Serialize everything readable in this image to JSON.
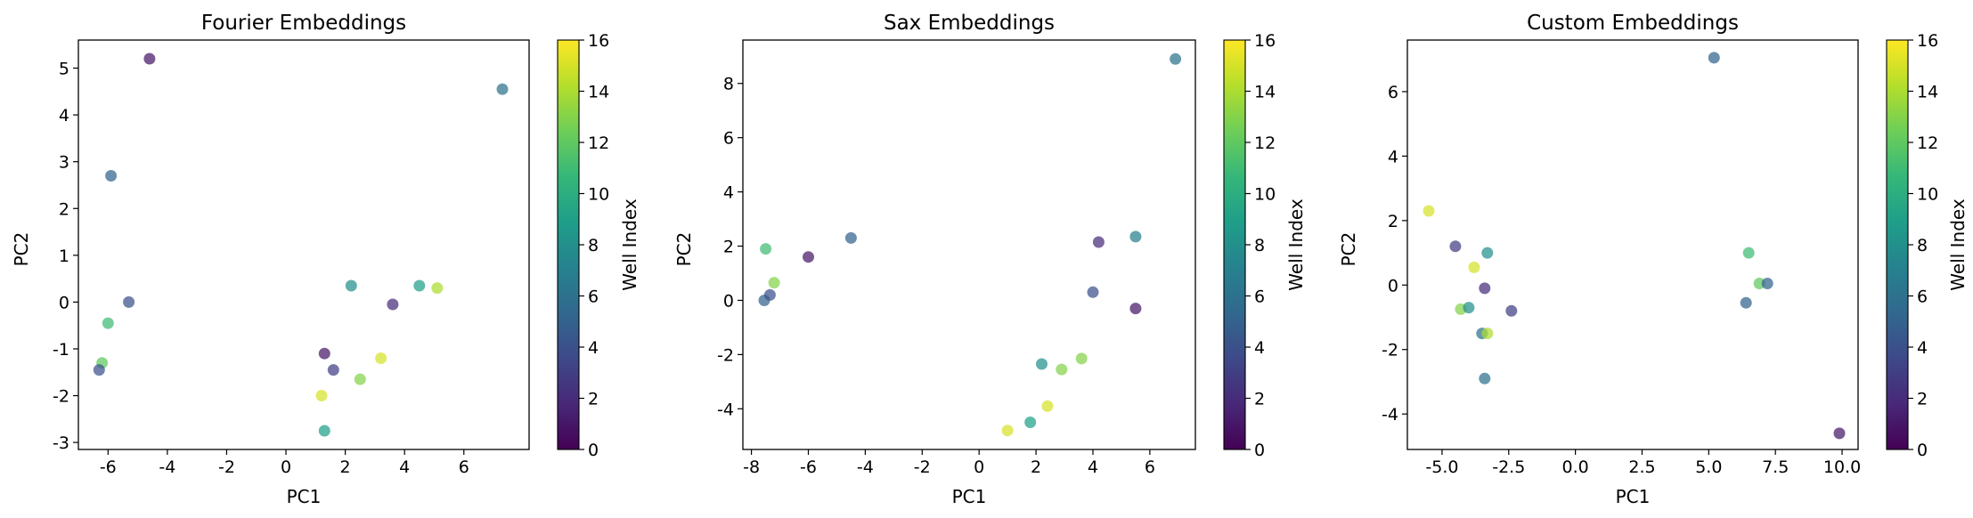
{
  "colors": {
    "colormap": [
      "#440154",
      "#482878",
      "#3e4989",
      "#31688e",
      "#26828e",
      "#1f9e89",
      "#35b779",
      "#6ece58",
      "#b5de2b",
      "#fde725"
    ],
    "axis": "#000000"
  },
  "colorbar_label": "Well Index",
  "chart_data": [
    {
      "type": "scatter",
      "title": "Fourier Embeddings",
      "xlabel": "PC1",
      "ylabel": "PC2",
      "xlim": [
        -7.0,
        8.2
      ],
      "ylim": [
        -3.15,
        5.6
      ],
      "xticks": [
        -6,
        -4,
        -2,
        0,
        2,
        4,
        6
      ],
      "yticks": [
        -3,
        -2,
        -1,
        0,
        1,
        2,
        3,
        4,
        5
      ],
      "colorbar": {
        "label": "Well Index",
        "range": [
          0,
          16
        ],
        "ticks": [
          0,
          2,
          4,
          6,
          8,
          10,
          12,
          14,
          16
        ]
      },
      "grid": false,
      "points": [
        {
          "x": -4.6,
          "y": 5.2,
          "c": 1
        },
        {
          "x": 7.3,
          "y": 4.55,
          "c": 6
        },
        {
          "x": -5.9,
          "y": 2.7,
          "c": 5
        },
        {
          "x": -5.3,
          "y": 0.0,
          "c": 4
        },
        {
          "x": -6.0,
          "y": -0.45,
          "c": 11
        },
        {
          "x": -6.2,
          "y": -1.3,
          "c": 12
        },
        {
          "x": -6.3,
          "y": -1.45,
          "c": 4
        },
        {
          "x": 2.2,
          "y": 0.35,
          "c": 8
        },
        {
          "x": 4.5,
          "y": 0.35,
          "c": 9
        },
        {
          "x": 5.1,
          "y": 0.3,
          "c": 14
        },
        {
          "x": 3.6,
          "y": -0.05,
          "c": 2
        },
        {
          "x": 1.3,
          "y": -1.1,
          "c": 1
        },
        {
          "x": 1.6,
          "y": -1.45,
          "c": 3
        },
        {
          "x": 3.2,
          "y": -1.2,
          "c": 15
        },
        {
          "x": 2.5,
          "y": -1.65,
          "c": 13
        },
        {
          "x": 1.2,
          "y": -2.0,
          "c": 15
        },
        {
          "x": 1.3,
          "y": -2.75,
          "c": 9
        }
      ]
    },
    {
      "type": "scatter",
      "title": "Sax Embeddings",
      "xlabel": "PC1",
      "ylabel": "PC2",
      "xlim": [
        -8.3,
        7.6
      ],
      "ylim": [
        -5.5,
        9.6
      ],
      "xticks": [
        -8,
        -6,
        -4,
        -2,
        0,
        2,
        4,
        6
      ],
      "yticks": [
        -4,
        -2,
        0,
        2,
        4,
        6,
        8
      ],
      "colorbar": {
        "label": "Well Index",
        "range": [
          0,
          16
        ],
        "ticks": [
          0,
          2,
          4,
          6,
          8,
          10,
          12,
          14,
          16
        ]
      },
      "grid": false,
      "points": [
        {
          "x": 6.9,
          "y": 8.9,
          "c": 6
        },
        {
          "x": -7.5,
          "y": 1.9,
          "c": 11
        },
        {
          "x": -7.2,
          "y": 0.65,
          "c": 13
        },
        {
          "x": -6.0,
          "y": 1.6,
          "c": 1
        },
        {
          "x": -4.5,
          "y": 2.3,
          "c": 5
        },
        {
          "x": -7.55,
          "y": 0.0,
          "c": 5
        },
        {
          "x": -7.35,
          "y": 0.2,
          "c": 4
        },
        {
          "x": 4.2,
          "y": 2.15,
          "c": 2
        },
        {
          "x": 5.5,
          "y": 2.35,
          "c": 7
        },
        {
          "x": 4.0,
          "y": 0.3,
          "c": 4
        },
        {
          "x": 5.5,
          "y": -0.3,
          "c": 1
        },
        {
          "x": 2.2,
          "y": -2.35,
          "c": 8
        },
        {
          "x": 3.6,
          "y": -2.15,
          "c": 13
        },
        {
          "x": 2.9,
          "y": -2.55,
          "c": 13
        },
        {
          "x": 2.4,
          "y": -3.9,
          "c": 15
        },
        {
          "x": 1.8,
          "y": -4.5,
          "c": 9
        },
        {
          "x": 1.0,
          "y": -4.8,
          "c": 15
        }
      ]
    },
    {
      "type": "scatter",
      "title": "Custom Embeddings",
      "xlabel": "PC1",
      "ylabel": "PC2",
      "xlim": [
        -6.3,
        10.6
      ],
      "ylim": [
        -5.1,
        7.6
      ],
      "xticks": [
        -5.0,
        -2.5,
        0.0,
        2.5,
        5.0,
        7.5,
        10.0
      ],
      "yticks": [
        -4,
        -2,
        0,
        2,
        4,
        6
      ],
      "colorbar": {
        "label": "Well Index",
        "range": [
          0,
          16
        ],
        "ticks": [
          0,
          2,
          4,
          6,
          8,
          10,
          12,
          14,
          16
        ]
      },
      "grid": false,
      "points": [
        {
          "x": 5.2,
          "y": 7.05,
          "c": 5
        },
        {
          "x": -5.5,
          "y": 2.3,
          "c": 15
        },
        {
          "x": -4.5,
          "y": 1.2,
          "c": 3
        },
        {
          "x": -3.3,
          "y": 1.0,
          "c": 8
        },
        {
          "x": -3.8,
          "y": 0.55,
          "c": 15
        },
        {
          "x": -3.4,
          "y": -0.1,
          "c": 2
        },
        {
          "x": -4.3,
          "y": -0.75,
          "c": 13
        },
        {
          "x": -4.0,
          "y": -0.7,
          "c": 8
        },
        {
          "x": -2.4,
          "y": -0.8,
          "c": 3
        },
        {
          "x": -3.5,
          "y": -1.5,
          "c": 6
        },
        {
          "x": -3.3,
          "y": -1.5,
          "c": 14
        },
        {
          "x": -3.4,
          "y": -2.9,
          "c": 6
        },
        {
          "x": 6.5,
          "y": 1.0,
          "c": 11
        },
        {
          "x": 6.9,
          "y": 0.05,
          "c": 12
        },
        {
          "x": 7.2,
          "y": 0.05,
          "c": 5
        },
        {
          "x": 6.4,
          "y": -0.55,
          "c": 5
        },
        {
          "x": 9.9,
          "y": -4.6,
          "c": 1
        }
      ]
    }
  ]
}
